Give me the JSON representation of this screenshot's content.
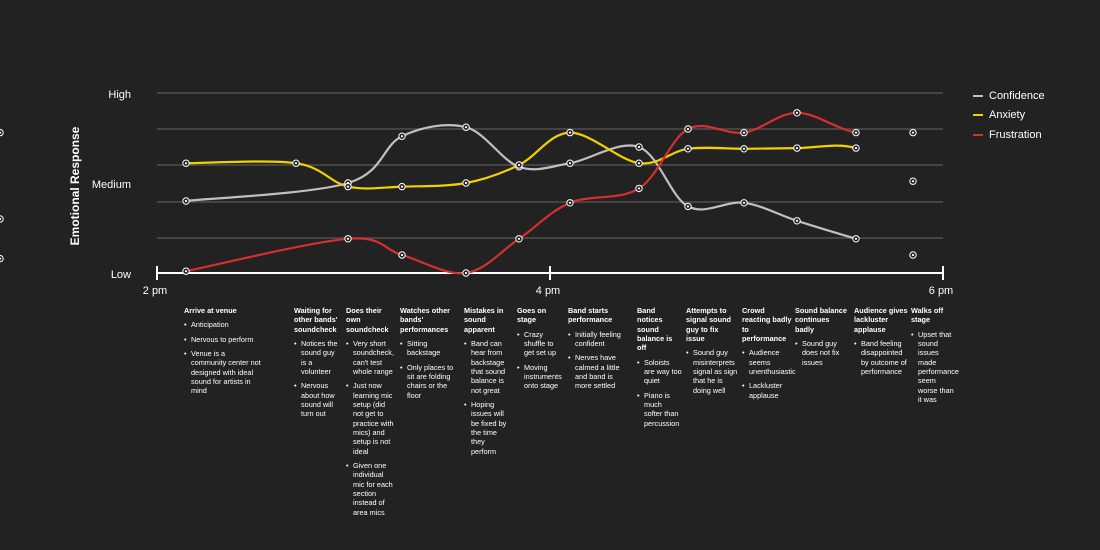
{
  "chart_data": {
    "type": "line",
    "ylabel": "Emotional Response",
    "y_tick_labels": [
      "Low",
      "Medium",
      "High"
    ],
    "x_tick_labels": [
      "2 pm",
      "4 pm",
      "6 pm"
    ],
    "ylim": [
      0,
      5
    ],
    "grid": true,
    "legend_position": "top-right",
    "series": [
      {
        "name": "Confidence",
        "color": "#c0c0c0",
        "points": [
          [
            0,
            2.0
          ],
          [
            2,
            2.5
          ],
          [
            3,
            3.8
          ],
          [
            4,
            4.05
          ],
          [
            5,
            2.95
          ],
          [
            6,
            3.05
          ],
          [
            7,
            3.5
          ],
          [
            8,
            1.85
          ],
          [
            9,
            1.95
          ],
          [
            10,
            1.45
          ],
          [
            11,
            0.95
          ],
          [
            12,
            0.5
          ],
          [
            13,
            0.4
          ]
        ]
      },
      {
        "name": "Anxiety",
        "color": "#f2d100",
        "points": [
          [
            0,
            3.05
          ],
          [
            1,
            3.05
          ],
          [
            2,
            2.4
          ],
          [
            3,
            2.4
          ],
          [
            4,
            2.5
          ],
          [
            5,
            3.0
          ],
          [
            6,
            3.9
          ],
          [
            7,
            3.05
          ],
          [
            8,
            3.45
          ],
          [
            9,
            3.45
          ],
          [
            10,
            3.47
          ],
          [
            11,
            3.47
          ],
          [
            12,
            2.55
          ],
          [
            13,
            1.5
          ]
        ]
      },
      {
        "name": "Frustration",
        "color": "#d62f2f",
        "points": [
          [
            0,
            0.05
          ],
          [
            2,
            0.95
          ],
          [
            3,
            0.5
          ],
          [
            4,
            0.0
          ],
          [
            5,
            0.95
          ],
          [
            6,
            1.95
          ],
          [
            7,
            2.35
          ],
          [
            8,
            4.0
          ],
          [
            9,
            3.9
          ],
          [
            10,
            4.45
          ],
          [
            11,
            3.9
          ],
          [
            12,
            3.9
          ],
          [
            13,
            3.9
          ]
        ]
      }
    ]
  },
  "stages": [
    {
      "title": "Arrive at venue",
      "bullets": [
        "Anticipation",
        "Nervous to perform",
        "Venue is a community center not designed with ideal sound for artists in mind"
      ]
    },
    {
      "title": "Waiting for other bands' soundcheck",
      "bullets": [
        "Notices the sound guy is a volunteer",
        "Nervous about how sound will turn out"
      ]
    },
    {
      "title": "Does their own soundcheck",
      "bullets": [
        "Very short soundcheck, can't test whole range",
        "Just now learning mic setup (did not get to practice with mics) and setup is not ideal",
        "Given one individual mic for each section instead of area mics"
      ]
    },
    {
      "title": "Watches other bands' performances",
      "bullets": [
        "Sitting backstage",
        "Only places to sit are folding chairs or the floor"
      ]
    },
    {
      "title": "Mistakes in sound apparent",
      "bullets": [
        "Band can hear from backstage that sound balance is not great",
        "Hoping issues will be fixed by the time they perform"
      ]
    },
    {
      "title": "Goes on stage",
      "bullets": [
        "Crazy shuffle to get set up",
        "Moving instruments onto stage"
      ]
    },
    {
      "title": "Band starts performance",
      "bullets": [
        "Initially feeling confident",
        "Nerves have calmed a little and band is more settled"
      ]
    },
    {
      "title": "Band notices sound balance is off",
      "bullets": [
        "Soloists are way too quiet",
        "Piano is much softer than percussion"
      ]
    },
    {
      "title": "Attempts to signal sound guy to fix issue",
      "bullets": [
        "Sound guy misinterprets signal as sign that he is doing well"
      ]
    },
    {
      "title": "Crowd reacting badly to performance",
      "bullets": [
        "Audience seems unenthusiastic",
        "Lackluster applause"
      ]
    },
    {
      "title": "Sound balance continues badly",
      "bullets": [
        "Sound guy does not fix issues"
      ]
    },
    {
      "title": "Audience gives lackluster applause",
      "bullets": [
        "Band feeling disappointed by outcome of performance"
      ]
    },
    {
      "title": "Walks off stage",
      "bullets": [
        "Upset that sound issues made performance seem worse than it was"
      ]
    }
  ]
}
